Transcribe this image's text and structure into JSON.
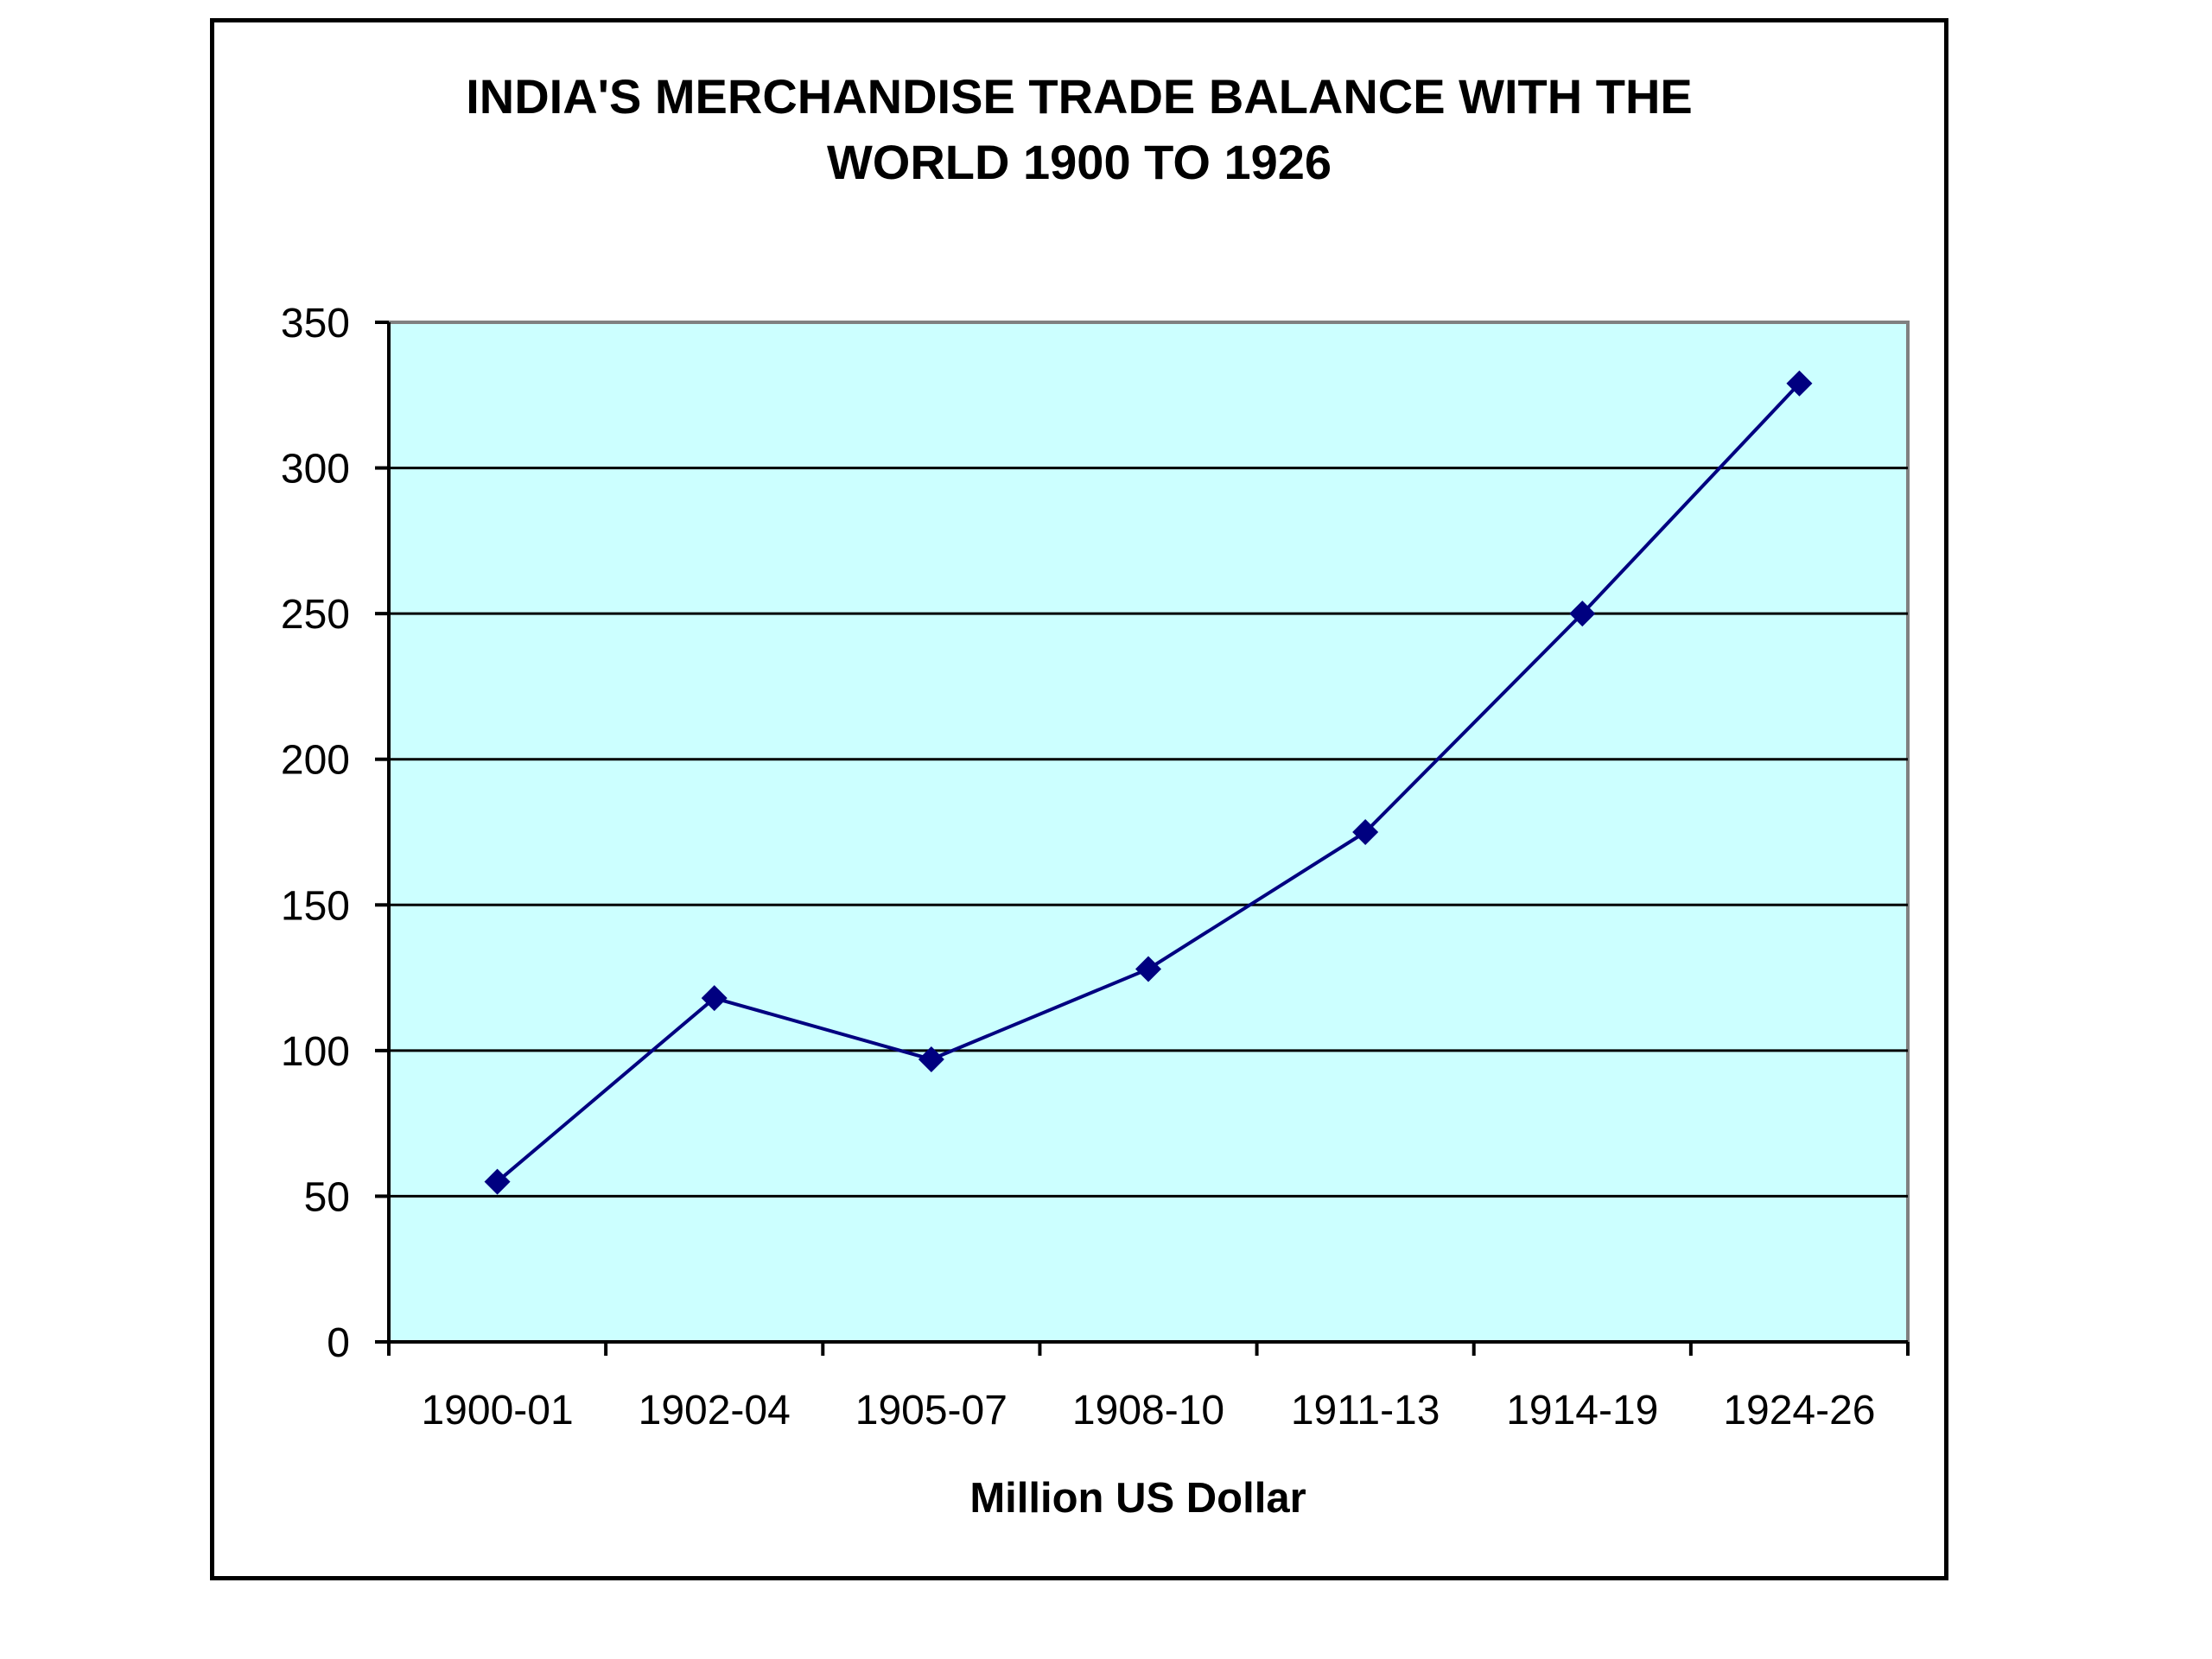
{
  "chart_data": {
    "type": "line",
    "title_lines": [
      "INDIA'S MERCHANDISE TRADE BALANCE WITH THE",
      "WORLD 1900 TO 1926"
    ],
    "xlabel": "Million US Dollar",
    "ylabel": "",
    "categories": [
      "1900-01",
      "1902-04",
      "1905-07",
      "1908-10",
      "1911-13",
      "1914-19",
      "1924-26"
    ],
    "series": [
      {
        "values": [
          55,
          118,
          97,
          128,
          175,
          250,
          329
        ],
        "color": "#000080",
        "marker": "diamond"
      }
    ],
    "ylim": [
      0,
      350
    ],
    "yticks": [
      "0",
      "50",
      "100",
      "150",
      "200",
      "250",
      "300",
      "350"
    ],
    "grid": "horizontal",
    "legend": "none",
    "colors": {
      "plot_background": "#ccffff",
      "gridline": "#000000",
      "axis": "#808080"
    }
  }
}
